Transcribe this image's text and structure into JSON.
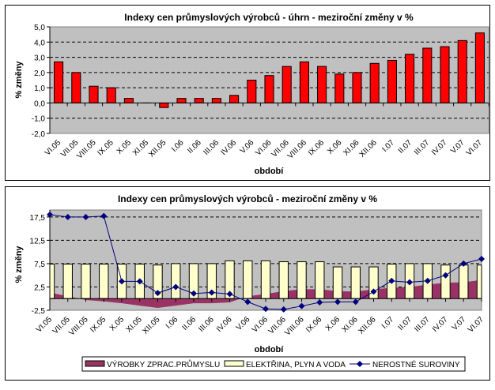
{
  "chart_data": [
    {
      "type": "bar",
      "title": "Indexy cen průmyslových výrobců - úhrn - meziroční změny v %",
      "xlabel": "období",
      "ylabel": "% změny",
      "ylim": [
        -2.0,
        5.0
      ],
      "yticks": [
        "5,0",
        "4,0",
        "3,0",
        "2,0",
        "1,0",
        "0,0",
        "-1,0",
        "-2,0"
      ],
      "ytick_values": [
        5,
        4,
        3,
        2,
        1,
        0,
        -1,
        -2
      ],
      "grid": true,
      "legend": "none",
      "colors": {
        "bar": "#ff0000",
        "plot_bg": "#c0c0c0"
      },
      "categories": [
        "VI.05",
        "VII.05",
        "VIII.05",
        "IX.05",
        "X.05",
        "XI.05",
        "XII.05",
        "I.06",
        "II.06",
        "III.06",
        "IV.06",
        "V.06",
        "VI.06",
        "VII.06",
        "VIII.06",
        "IX.06",
        "X.06",
        "XI.06",
        "XII.06",
        "I.07",
        "II.07",
        "III.07",
        "IV.07",
        "V.07",
        "VI.07"
      ],
      "values": [
        2.7,
        2.0,
        1.1,
        1.0,
        0.3,
        0.0,
        -0.3,
        0.3,
        0.3,
        0.3,
        0.5,
        1.5,
        1.8,
        2.4,
        2.7,
        2.4,
        1.9,
        2.0,
        2.6,
        2.8,
        3.2,
        3.6,
        3.7,
        4.1,
        4.6
      ]
    },
    {
      "type": "bar",
      "title": "Indexy cen průmyslových výrobců - meziroční změny v %",
      "xlabel": "období",
      "ylabel": "% změny",
      "ylim": [
        -2.5,
        19.0
      ],
      "yticks": [
        "17,5",
        "12,5",
        "7,5",
        "2,5",
        "-2,5"
      ],
      "ytick_values": [
        17.5,
        12.5,
        7.5,
        2.5,
        -2.5
      ],
      "grid": true,
      "legend": "bottom",
      "colors": {
        "plot_bg": "#c0c0c0"
      },
      "categories": [
        "VI.05",
        "VII.05",
        "VIII.05",
        "IX.05",
        "X.05",
        "XI.05",
        "XII.05",
        "I.06",
        "II.06",
        "III.06",
        "IV.06",
        "V.06",
        "VI.06",
        "VII.06",
        "VIII.06",
        "IX.06",
        "X.06",
        "XI.06",
        "XII.06",
        "I.07",
        "II.07",
        "III.07",
        "IV.07",
        "V.07",
        "VI.07"
      ],
      "series": [
        {
          "name": "VÝROBKY ZPRAC.PRŮMYSLU",
          "kind": "area",
          "color": "#993366",
          "values": [
            1.3,
            0.5,
            -0.3,
            -0.6,
            -1.0,
            -1.5,
            -2.0,
            -1.5,
            -1.0,
            -1.0,
            -0.8,
            0.5,
            1.0,
            1.6,
            2.0,
            2.0,
            1.6,
            1.5,
            2.0,
            2.3,
            2.5,
            3.0,
            3.4,
            3.5,
            4.0
          ]
        },
        {
          "name": "ELEKTŘINA, PLYN A  VODA",
          "kind": "bar",
          "color": "#ffffcc",
          "values": [
            7.4,
            7.4,
            7.4,
            7.4,
            7.4,
            7.4,
            7.2,
            7.5,
            7.5,
            7.5,
            8.1,
            8.1,
            8.1,
            7.9,
            7.9,
            7.9,
            6.8,
            6.8,
            6.8,
            7.4,
            7.5,
            7.5,
            7.2,
            7.2,
            7.2
          ]
        },
        {
          "name": "NEROSTNÉ  SUROVINY",
          "kind": "line",
          "color": "#000080",
          "values": [
            18.0,
            17.5,
            17.5,
            17.7,
            3.7,
            3.7,
            1.2,
            2.5,
            1.1,
            1.3,
            1.0,
            -0.7,
            -2.2,
            -2.3,
            -1.6,
            -0.8,
            -0.7,
            -0.7,
            1.5,
            3.8,
            3.5,
            3.8,
            5.0,
            7.5,
            8.5
          ]
        }
      ]
    }
  ]
}
